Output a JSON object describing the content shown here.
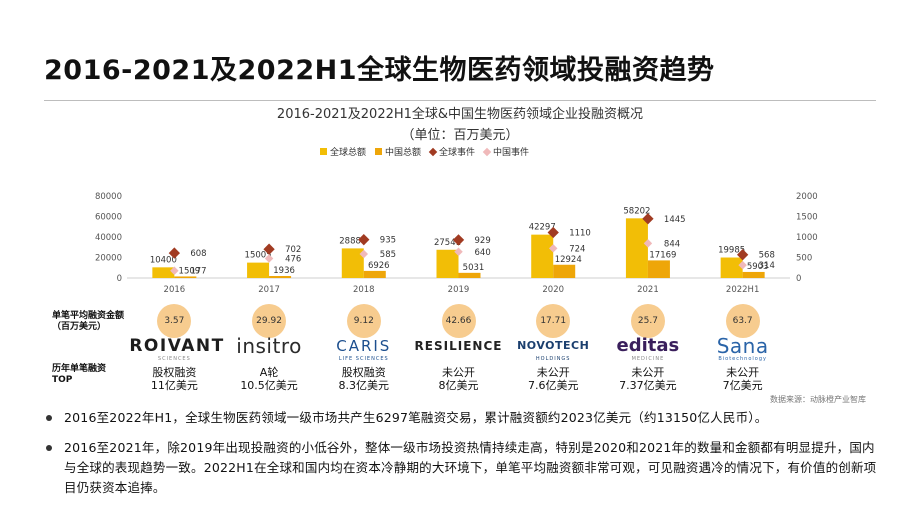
{
  "page": {
    "title": "2016-2021及2022H1全球生物医药领域投融资趋势"
  },
  "chart_data": {
    "type": "bar",
    "title": "2016-2021及2022H1全球&中国生物医药领域企业投融资概况",
    "subtitle": "（单位：百万美元）",
    "categories": [
      "2016",
      "2017",
      "2018",
      "2019",
      "2020",
      "2021",
      "2022H1"
    ],
    "series": [
      {
        "name": "全球总额",
        "kind": "bar",
        "axis": "left",
        "color": "#f2be06",
        "values": [
          10400,
          15005,
          28881,
          27541,
          42297,
          58202,
          19985
        ]
      },
      {
        "name": "中国总额",
        "kind": "bar",
        "axis": "left",
        "color": "#eea609",
        "values": [
          1509,
          1936,
          6926,
          5031,
          12924,
          17169,
          5903
        ]
      },
      {
        "name": "全球事件",
        "kind": "marker",
        "axis": "right",
        "color": "#a13b22",
        "values": [
          608,
          702,
          935,
          929,
          1110,
          1445,
          568
        ]
      },
      {
        "name": "中国事件",
        "kind": "marker",
        "axis": "right",
        "color": "#f0b9ba",
        "values": [
          177,
          476,
          585,
          640,
          724,
          844,
          314
        ]
      }
    ],
    "left_axis": {
      "ticks": [
        "0",
        "20000",
        "40000",
        "60000",
        "80000"
      ],
      "ylim": [
        0,
        80000
      ]
    },
    "right_axis": {
      "ticks": [
        "0",
        "500",
        "1000",
        "1500",
        "2000"
      ],
      "ylim": [
        0,
        2000
      ]
    },
    "grid": false,
    "legend_position": "top"
  },
  "avg": {
    "label": "单笔平均融资金额\n（百万美元）",
    "values": [
      "3.57",
      "29.92",
      "9.12",
      "42.66",
      "17.71",
      "25.7",
      "63.7"
    ]
  },
  "top": {
    "label": "历年单笔融资\nTOP",
    "companies": [
      {
        "logo": "ROIVANT",
        "logo_sub": "SCIENCES",
        "round": "股权融资",
        "amount": "11亿美元"
      },
      {
        "logo": "insitro",
        "logo_sub": "",
        "round": "A轮",
        "amount": "10.5亿美元"
      },
      {
        "logo": "CARIS",
        "logo_sub": "LIFE SCIENCES",
        "round": "股权融资",
        "amount": "8.3亿美元"
      },
      {
        "logo": "RESILIENCE",
        "logo_sub": "",
        "round": "未公开",
        "amount": "8亿美元"
      },
      {
        "logo": "NOVOTECH",
        "logo_sub": "HOLDINGS",
        "round": "未公开",
        "amount": "7.6亿美元"
      },
      {
        "logo": "editas",
        "logo_sub": "MEDICINE",
        "round": "未公开",
        "amount": "7.37亿美元"
      },
      {
        "logo": "Sana",
        "logo_sub": "Biotechnology",
        "round": "未公开",
        "amount": "7亿美元"
      }
    ]
  },
  "source": "数据来源：动脉橙产业智库",
  "bullets": [
    "2016至2022年H1，全球生物医药领域一级市场共产生6297笔融资交易，累计融资额约2023亿美元（约13150亿人民币）。",
    "2016至2021年，除2019年出现投融资的小低谷外，整体一级市场投资热情持续走高，特别是2020和2021年的数量和金额都有明显提升，国内与全球的表现趋势一致。2022H1在全球和国内均在资本冷静期的大环境下，单笔平均融资额非常可观，可见融资遇冷的情况下，有价值的创新项目仍获资本追捧。"
  ]
}
